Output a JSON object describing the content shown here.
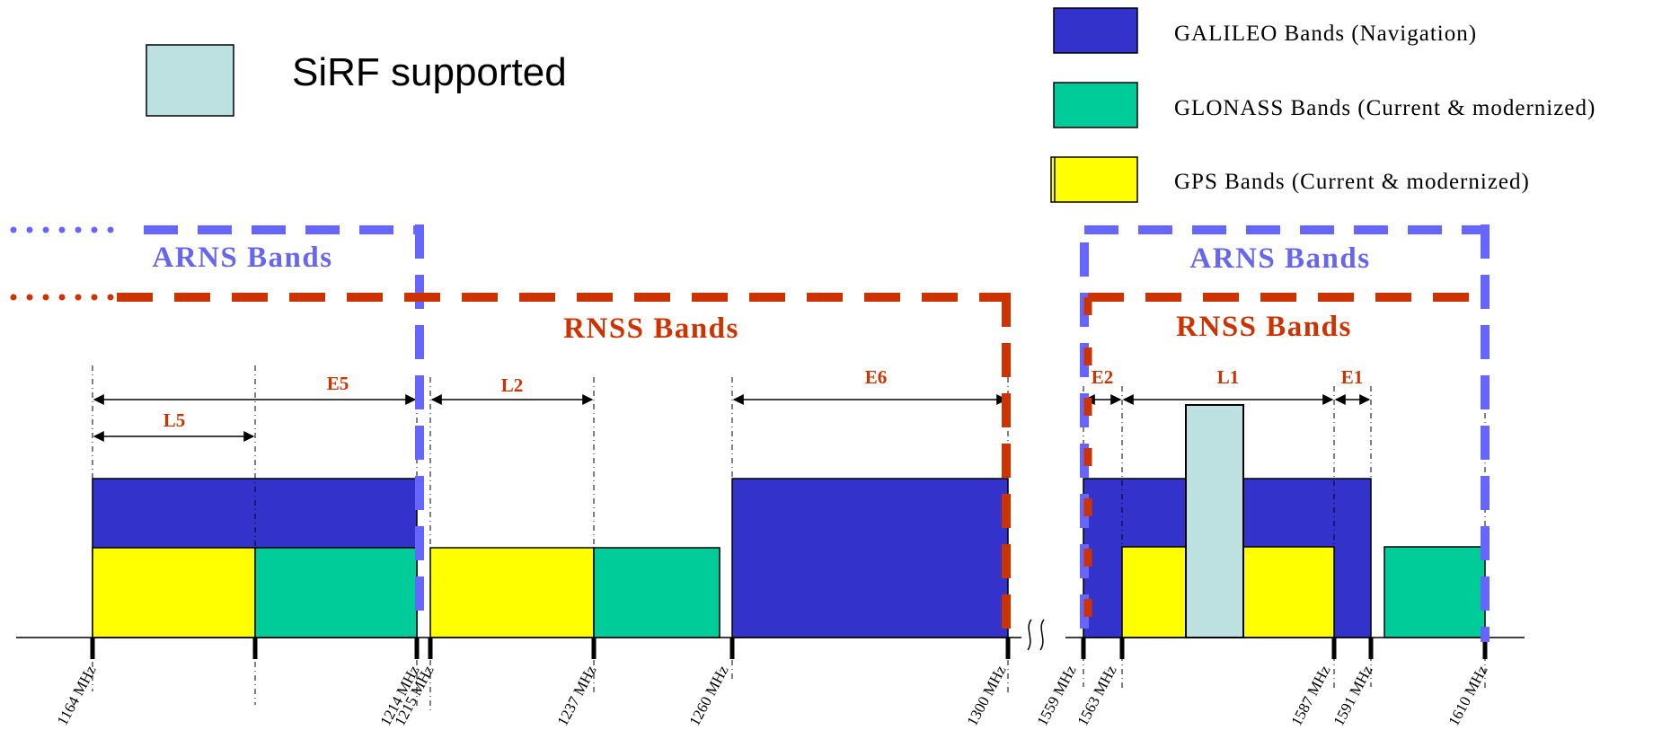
{
  "colors": {
    "galileo": "#3333cc",
    "glonass": "#00cc99",
    "gps": "#ffff00",
    "sirf": "#bde0e0",
    "arns": "#6666ff",
    "rnss": "#cc3300",
    "label_red": "#cc3300",
    "label_blue": "#6666ee"
  },
  "legend": {
    "sirf": "SiRF supported",
    "galileo": "GALILEO Bands (Navigation)",
    "glonass": "GLONASS Bands (Current & modernized)",
    "gps": "GPS Bands (Current & modernized)"
  },
  "regions": {
    "arns_left": "ARNS Bands",
    "rnss_left": "RNSS Bands",
    "arns_right": "ARNS Bands",
    "rnss_right": "RNSS Bands"
  },
  "signals": {
    "e5": "E5",
    "l5": "L5",
    "l2": "L2",
    "e6": "E6",
    "e2": "E2",
    "l1": "L1",
    "e1": "E1"
  },
  "frequencies": {
    "f1164": "1164 MHz",
    "f1214": "1214 MHz",
    "f1215": "1215 MHz",
    "f1237": "1237 MHz",
    "f1260": "1260 MHz",
    "f1300": "1300 MHz",
    "f1559": "1559 MHz",
    "f1563": "1563 MHz",
    "f1587": "1587 MHz",
    "f1591": "1591 MHz",
    "f1610": "1610 MHz"
  }
}
